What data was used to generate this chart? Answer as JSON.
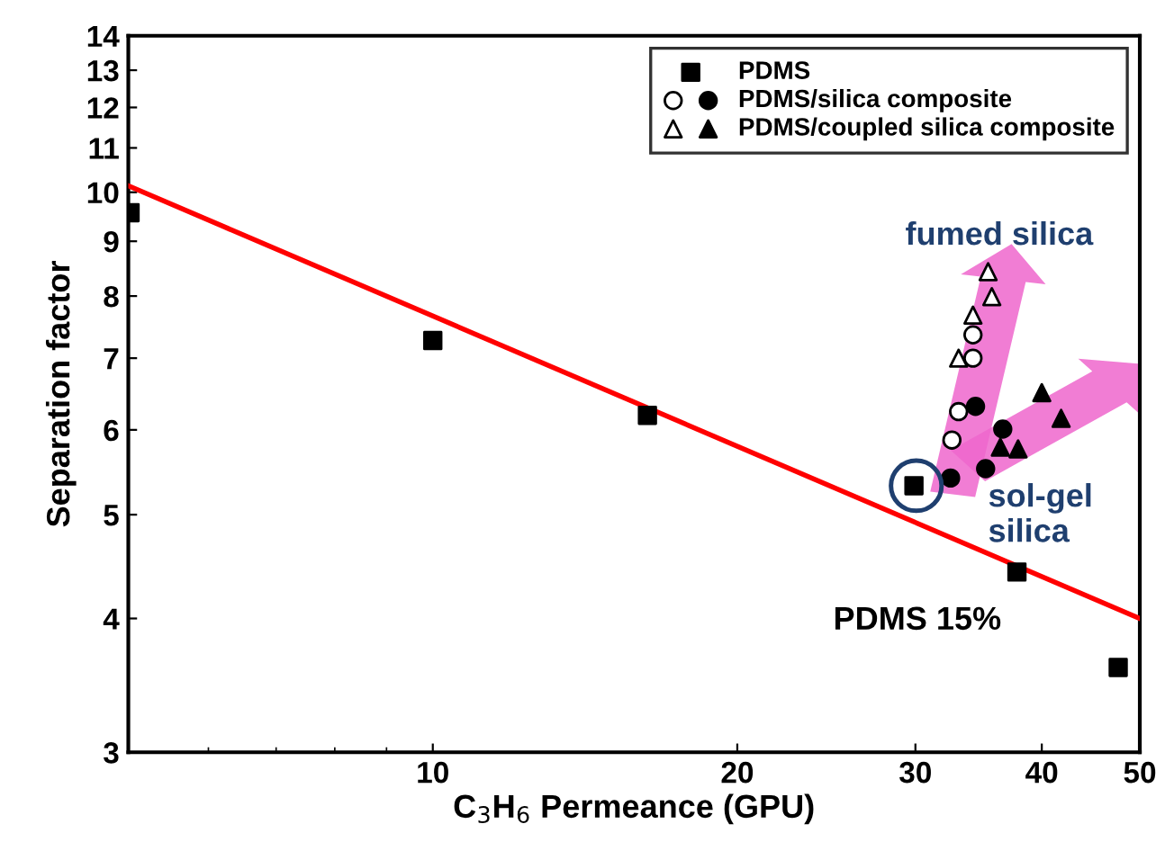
{
  "chart_data": {
    "type": "scatter",
    "xlabel": "C$_{3}$H$_{6}$ Permeance (GPU)",
    "ylabel": "Separation factor",
    "log": "xy",
    "xlim": [
      5,
      50
    ],
    "xticks": [
      10,
      20,
      30,
      40,
      50
    ],
    "ylim": [
      3,
      14
    ],
    "yticks": [
      3,
      4,
      5,
      6,
      7,
      8,
      9,
      10,
      11,
      12,
      13,
      14
    ],
    "grid": false,
    "legend": "top right",
    "series": [
      {
        "name": "PDMS",
        "marker": "square",
        "color": "#000000",
        "x": [
          5.02,
          10,
          16.3,
          29.9,
          37.8,
          47.6
        ],
        "values": [
          9.57,
          7.27,
          6.19,
          5.32,
          4.42,
          3.6
        ]
      },
      {
        "marker": "circle",
        "color": "#ffffff",
        "x": [
          34.2,
          34.2,
          33.1,
          32.6
        ],
        "values": [
          7.36,
          7.0,
          6.24,
          5.87
        ]
      },
      {
        "name": "PDMS/silica composite",
        "marker": "circle",
        "color": "#000000",
        "x": [
          34.4,
          36.6,
          32.5,
          35.2
        ],
        "values": [
          6.31,
          6.01,
          5.41,
          5.52
        ]
      },
      {
        "marker": "triangle",
        "color": "#ffffff",
        "x": [
          35.4,
          35.7,
          34.2,
          33.1
        ],
        "values": [
          8.43,
          7.99,
          7.68,
          7.0
        ]
      },
      {
        "name": "PDMS/coupled silica composite",
        "marker": "triangle",
        "color": "#000000",
        "x": [
          40.0,
          41.8,
          36.4,
          37.9
        ],
        "values": [
          6.5,
          6.15,
          5.78,
          5.76
        ]
      },
      {
        "type": "line",
        "color": "#ff0000",
        "x": [
          5,
          50
        ],
        "values": [
          10.14,
          4.0
        ]
      }
    ],
    "annotations": [
      "PDMS 15%",
      "fumed silica",
      "sol-gel\nsilica"
    ]
  }
}
